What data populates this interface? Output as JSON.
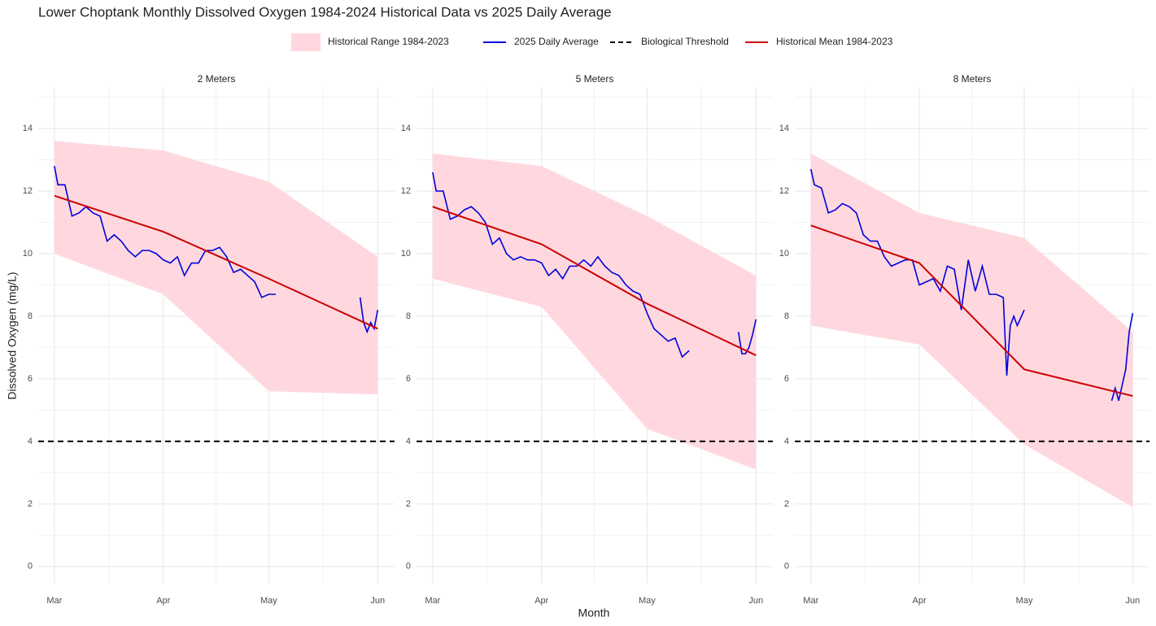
{
  "title": "Lower Choptank Monthly Dissolved Oxygen 1984-2024 Historical Data vs 2025 Daily Average",
  "x_label": "Month",
  "y_label": "Dissolved Oxygen (mg/L)",
  "legend": [
    {
      "name": "Historical Range 1984-2023",
      "color": "#ffd8df",
      "style": "ribbon"
    },
    {
      "name": "2025 Daily Average",
      "color": "#0000dd",
      "style": "line"
    },
    {
      "name": "Biological Threshold",
      "color": "#000000",
      "style": "dashed"
    },
    {
      "name": "Historical Mean 1984-2023",
      "color": "#cc0000",
      "style": "line"
    }
  ],
  "chart_data": [
    {
      "type": "line",
      "subtitle": "2 Meters",
      "xlim": [
        -4.6,
        96.8
      ],
      "ylim": [
        -0.55,
        15.3
      ],
      "xticks": [
        {
          "value": 0,
          "label": "Mar"
        },
        {
          "value": 31,
          "label": "Apr"
        },
        {
          "value": 61,
          "label": "May"
        },
        {
          "value": 92,
          "label": "Jun"
        }
      ],
      "yticks": [
        0,
        2,
        4,
        6,
        8,
        10,
        12,
        14
      ],
      "grid": true,
      "threshold": 4,
      "monthly_x": [
        0,
        31,
        61,
        92
      ],
      "range_low": [
        10.0,
        8.7,
        5.6,
        5.5
      ],
      "range_high": [
        13.6,
        13.3,
        12.3,
        9.9
      ],
      "mean": [
        11.85,
        10.7,
        9.2,
        7.6
      ],
      "daily_x": [
        0,
        1,
        3,
        5,
        7,
        9,
        11,
        13,
        15,
        17,
        19,
        21,
        23,
        25,
        27,
        29,
        31,
        33,
        35,
        37,
        39,
        41,
        43,
        45,
        47,
        49,
        51,
        53,
        55,
        57,
        59,
        61,
        63,
        75,
        87,
        88,
        89,
        90,
        91,
        92
      ],
      "daily": [
        12.8,
        12.2,
        12.2,
        11.2,
        11.3,
        11.5,
        11.3,
        11.2,
        10.4,
        10.6,
        10.4,
        10.1,
        9.9,
        10.1,
        10.1,
        10.0,
        9.8,
        9.7,
        9.9,
        9.3,
        9.7,
        9.7,
        10.1,
        10.1,
        10.2,
        9.9,
        9.4,
        9.5,
        9.3,
        9.1,
        8.6,
        8.7,
        8.7,
        null,
        8.6,
        7.8,
        7.5,
        7.8,
        7.6,
        8.2
      ]
    },
    {
      "type": "line",
      "subtitle": "5 Meters",
      "xlim": [
        -4.6,
        96.8
      ],
      "ylim": [
        -0.55,
        15.3
      ],
      "xticks": [
        {
          "value": 0,
          "label": "Mar"
        },
        {
          "value": 31,
          "label": "Apr"
        },
        {
          "value": 61,
          "label": "May"
        },
        {
          "value": 92,
          "label": "Jun"
        }
      ],
      "yticks": [
        0,
        2,
        4,
        6,
        8,
        10,
        12,
        14
      ],
      "grid": true,
      "threshold": 4,
      "monthly_x": [
        0,
        31,
        61,
        92
      ],
      "range_low": [
        9.2,
        8.3,
        4.4,
        3.1
      ],
      "range_high": [
        13.2,
        12.8,
        11.2,
        9.3
      ],
      "mean": [
        11.5,
        10.3,
        8.4,
        6.75
      ],
      "daily_x": [
        0,
        1,
        3,
        5,
        7,
        9,
        11,
        13,
        15,
        17,
        19,
        21,
        23,
        25,
        27,
        29,
        31,
        33,
        35,
        37,
        39,
        41,
        43,
        45,
        47,
        49,
        51,
        53,
        55,
        57,
        59,
        61,
        63,
        65,
        67,
        69,
        71,
        73,
        75,
        87,
        88,
        89,
        90,
        91,
        92
      ],
      "daily": [
        12.6,
        12.0,
        12.0,
        11.1,
        11.2,
        11.4,
        11.5,
        11.3,
        11.0,
        10.3,
        10.5,
        10.0,
        9.8,
        9.9,
        9.8,
        9.8,
        9.7,
        9.3,
        9.5,
        9.2,
        9.6,
        9.6,
        9.8,
        9.6,
        9.9,
        9.6,
        9.4,
        9.3,
        9.0,
        8.8,
        8.7,
        8.1,
        7.6,
        7.4,
        7.2,
        7.3,
        6.7,
        6.9,
        null,
        7.5,
        6.8,
        6.8,
        7.0,
        7.4,
        7.9
      ]
    },
    {
      "type": "line",
      "subtitle": "8 Meters",
      "xlim": [
        -4.6,
        96.8
      ],
      "ylim": [
        -0.55,
        15.3
      ],
      "xticks": [
        {
          "value": 0,
          "label": "Mar"
        },
        {
          "value": 31,
          "label": "Apr"
        },
        {
          "value": 61,
          "label": "May"
        },
        {
          "value": 92,
          "label": "Jun"
        }
      ],
      "yticks": [
        0,
        2,
        4,
        6,
        8,
        10,
        12,
        14
      ],
      "grid": true,
      "threshold": 4,
      "monthly_x": [
        0,
        31,
        61,
        92
      ],
      "range_low": [
        7.7,
        7.1,
        3.9,
        1.9
      ],
      "range_high": [
        13.2,
        11.3,
        10.5,
        7.5
      ],
      "mean": [
        10.9,
        9.7,
        6.3,
        5.45
      ],
      "daily_x": [
        0,
        1,
        3,
        5,
        7,
        9,
        11,
        13,
        15,
        17,
        19,
        21,
        23,
        25,
        27,
        29,
        31,
        33,
        35,
        37,
        39,
        41,
        43,
        45,
        47,
        49,
        51,
        53,
        55,
        56,
        57,
        58,
        59,
        61,
        75,
        86,
        87,
        88,
        89,
        90,
        91,
        92
      ],
      "daily": [
        12.7,
        12.2,
        12.1,
        11.3,
        11.4,
        11.6,
        11.5,
        11.3,
        10.6,
        10.4,
        10.4,
        9.9,
        9.6,
        9.7,
        9.8,
        9.8,
        9.0,
        9.1,
        9.2,
        8.8,
        9.6,
        9.5,
        8.2,
        9.8,
        8.8,
        9.6,
        8.7,
        8.7,
        8.6,
        6.1,
        7.7,
        8.0,
        7.7,
        8.2,
        null,
        5.3,
        5.7,
        5.3,
        5.8,
        6.3,
        7.5,
        8.1
      ]
    }
  ]
}
